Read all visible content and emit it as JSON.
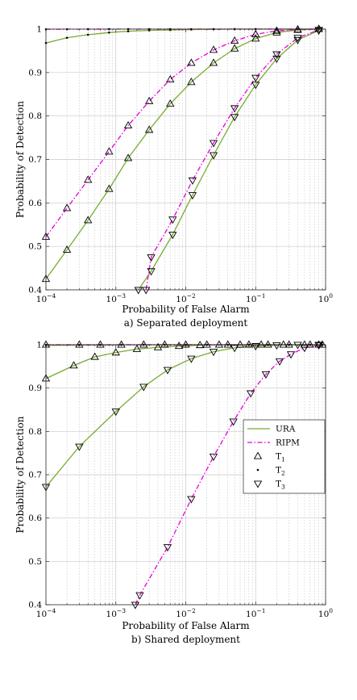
{
  "chart_data": [
    {
      "type": "line",
      "caption": "a) Separated deployment",
      "xlabel": "Probability of False Alarm",
      "ylabel": "Probability of Detection",
      "xscale": "log",
      "xlim": [
        0.0001,
        1
      ],
      "ylim": [
        0.4,
        1
      ],
      "grid": true,
      "x_ticks": [
        "10^-4",
        "10^-3",
        "10^-2",
        "10^-1",
        "10^0"
      ],
      "y_ticks": [
        "0.4",
        "0.5",
        "0.6",
        "0.7",
        "0.8",
        "0.9",
        "1"
      ],
      "colors": {
        "URA": "#77AC30",
        "RIPM": "#E600D8"
      },
      "series": [
        {
          "method": "URA",
          "target": "T1",
          "x": [
            0.0001,
            0.0002,
            0.0004,
            0.0008,
            0.0015,
            0.003,
            0.006,
            0.012,
            0.025,
            0.05,
            0.1,
            0.2,
            0.4,
            0.8
          ],
          "y": [
            0.425,
            0.492,
            0.56,
            0.632,
            0.703,
            0.768,
            0.828,
            0.878,
            0.922,
            0.955,
            0.978,
            0.992,
            0.998,
            1.0
          ]
        },
        {
          "method": "RIPM",
          "target": "T1",
          "x": [
            0.0001,
            0.0002,
            0.0004,
            0.0008,
            0.0015,
            0.003,
            0.006,
            0.012,
            0.025,
            0.05,
            0.1,
            0.2,
            0.4,
            0.8
          ],
          "y": [
            0.522,
            0.588,
            0.653,
            0.718,
            0.778,
            0.834,
            0.884,
            0.922,
            0.952,
            0.973,
            0.988,
            0.996,
            0.999,
            1.0
          ]
        },
        {
          "method": "URA",
          "target": "T2",
          "x": [
            0.0001,
            0.0002,
            0.0004,
            0.0008,
            0.0015,
            0.003,
            0.006,
            0.012,
            0.025,
            0.05,
            0.1,
            0.2,
            0.4,
            0.8
          ],
          "y": [
            0.968,
            0.98,
            0.987,
            0.992,
            0.995,
            0.997,
            0.998,
            0.999,
            0.9995,
            1.0,
            1.0,
            1.0,
            1.0,
            1.0
          ]
        },
        {
          "method": "RIPM",
          "target": "T2",
          "x": [
            0.0001,
            0.0002,
            0.0004,
            0.0008,
            0.0015,
            0.003,
            0.006,
            0.012,
            0.025,
            0.05,
            0.1,
            0.2,
            0.4,
            0.8
          ],
          "y": [
            0.9995,
            0.9997,
            0.9998,
            1.0,
            1.0,
            1.0,
            1.0,
            1.0,
            1.0,
            1.0,
            1.0,
            1.0,
            1.0,
            1.0
          ]
        },
        {
          "method": "URA",
          "target": "T3",
          "x": [
            0.0021,
            0.0032,
            0.0065,
            0.0125,
            0.025,
            0.05,
            0.1,
            0.2,
            0.4,
            0.8
          ],
          "y": [
            0.4,
            0.443,
            0.527,
            0.618,
            0.71,
            0.798,
            0.872,
            0.932,
            0.975,
            0.997
          ]
        },
        {
          "method": "RIPM",
          "target": "T3",
          "x": [
            0.0027,
            0.0032,
            0.0065,
            0.0125,
            0.025,
            0.05,
            0.1,
            0.2,
            0.4,
            0.8
          ],
          "y": [
            0.4,
            0.475,
            0.562,
            0.652,
            0.738,
            0.818,
            0.888,
            0.942,
            0.98,
            0.998
          ]
        }
      ]
    },
    {
      "type": "line",
      "caption": "b) Shared deployment",
      "xlabel": "Probability of False Alarm",
      "ylabel": "Probability of Detection",
      "xscale": "log",
      "xlim": [
        0.0001,
        1
      ],
      "ylim": [
        0.4,
        1
      ],
      "grid": true,
      "x_ticks": [
        "10^-4",
        "10^-3",
        "10^-2",
        "10^-1",
        "10^0"
      ],
      "y_ticks": [
        "0.4",
        "0.5",
        "0.6",
        "0.7",
        "0.8",
        "0.9",
        "1"
      ],
      "legend": {
        "placement": "right-middle",
        "entries": [
          {
            "label": "URA",
            "kind": "line",
            "method": "URA"
          },
          {
            "label": "RIPM",
            "kind": "line",
            "method": "RIPM"
          },
          {
            "label": "T",
            "sub": "1",
            "kind": "marker",
            "marker": "triangle-up"
          },
          {
            "label": "T",
            "sub": "2",
            "kind": "marker",
            "marker": "dot"
          },
          {
            "label": "T",
            "sub": "3",
            "kind": "marker",
            "marker": "triangle-down"
          }
        ]
      },
      "colors": {
        "URA": "#77AC30",
        "RIPM": "#E600D8"
      },
      "series": [
        {
          "method": "URA",
          "target": "T1",
          "x": [
            0.0001,
            0.00025,
            0.0005,
            0.001,
            0.002,
            0.004,
            0.008,
            0.016,
            0.03,
            0.06,
            0.12,
            0.25,
            0.5,
            0.8
          ],
          "y": [
            0.922,
            0.952,
            0.972,
            0.982,
            0.99,
            0.994,
            0.997,
            0.999,
            1.0,
            1.0,
            1.0,
            1.0,
            1.0,
            1.0
          ]
        },
        {
          "method": "RIPM",
          "target": "T1",
          "x": [
            0.0001,
            0.0003,
            0.0006,
            0.0012,
            0.0025,
            0.005,
            0.01,
            0.02,
            0.04,
            0.08,
            0.15,
            0.3,
            0.6,
            0.9
          ],
          "y": [
            1.0,
            1.0,
            1.0,
            1.0,
            1.0,
            1.0,
            1.0,
            1.0,
            1.0,
            1.0,
            1.0,
            1.0,
            1.0,
            1.0
          ]
        },
        {
          "method": "URA",
          "target": "T2",
          "x": [
            0.0001,
            0.0003,
            0.0006,
            0.0012,
            0.0025,
            0.005,
            0.01,
            0.02,
            0.04,
            0.08,
            0.15,
            0.3,
            0.6,
            0.9
          ],
          "y": [
            0.9985,
            0.9992,
            0.9996,
            0.9998,
            1.0,
            1.0,
            1.0,
            1.0,
            1.0,
            1.0,
            1.0,
            1.0,
            1.0,
            1.0
          ]
        },
        {
          "method": "RIPM",
          "target": "T2",
          "x": [
            0.0001,
            0.0003,
            0.0006,
            0.0012,
            0.0025,
            0.005,
            0.01,
            0.02,
            0.04,
            0.08,
            0.15,
            0.3,
            0.6,
            0.9
          ],
          "y": [
            1.0,
            1.0,
            1.0,
            1.0,
            1.0,
            1.0,
            1.0,
            1.0,
            1.0,
            1.0,
            1.0,
            1.0,
            1.0,
            1.0
          ]
        },
        {
          "method": "URA",
          "target": "T3",
          "x": [
            0.0001,
            0.0003,
            0.001,
            0.0025,
            0.0055,
            0.012,
            0.025,
            0.05,
            0.1,
            0.2,
            0.4,
            0.8
          ],
          "y": [
            0.672,
            0.765,
            0.846,
            0.903,
            0.942,
            0.968,
            0.984,
            0.993,
            0.997,
            0.999,
            1.0,
            1.0
          ]
        },
        {
          "method": "RIPM",
          "target": "T3",
          "x": [
            0.0019,
            0.0022,
            0.0055,
            0.012,
            0.025,
            0.048,
            0.085,
            0.14,
            0.22,
            0.32,
            0.5,
            0.8
          ],
          "y": [
            0.4,
            0.422,
            0.533,
            0.644,
            0.742,
            0.823,
            0.888,
            0.932,
            0.962,
            0.978,
            0.993,
            0.999
          ]
        }
      ]
    }
  ]
}
